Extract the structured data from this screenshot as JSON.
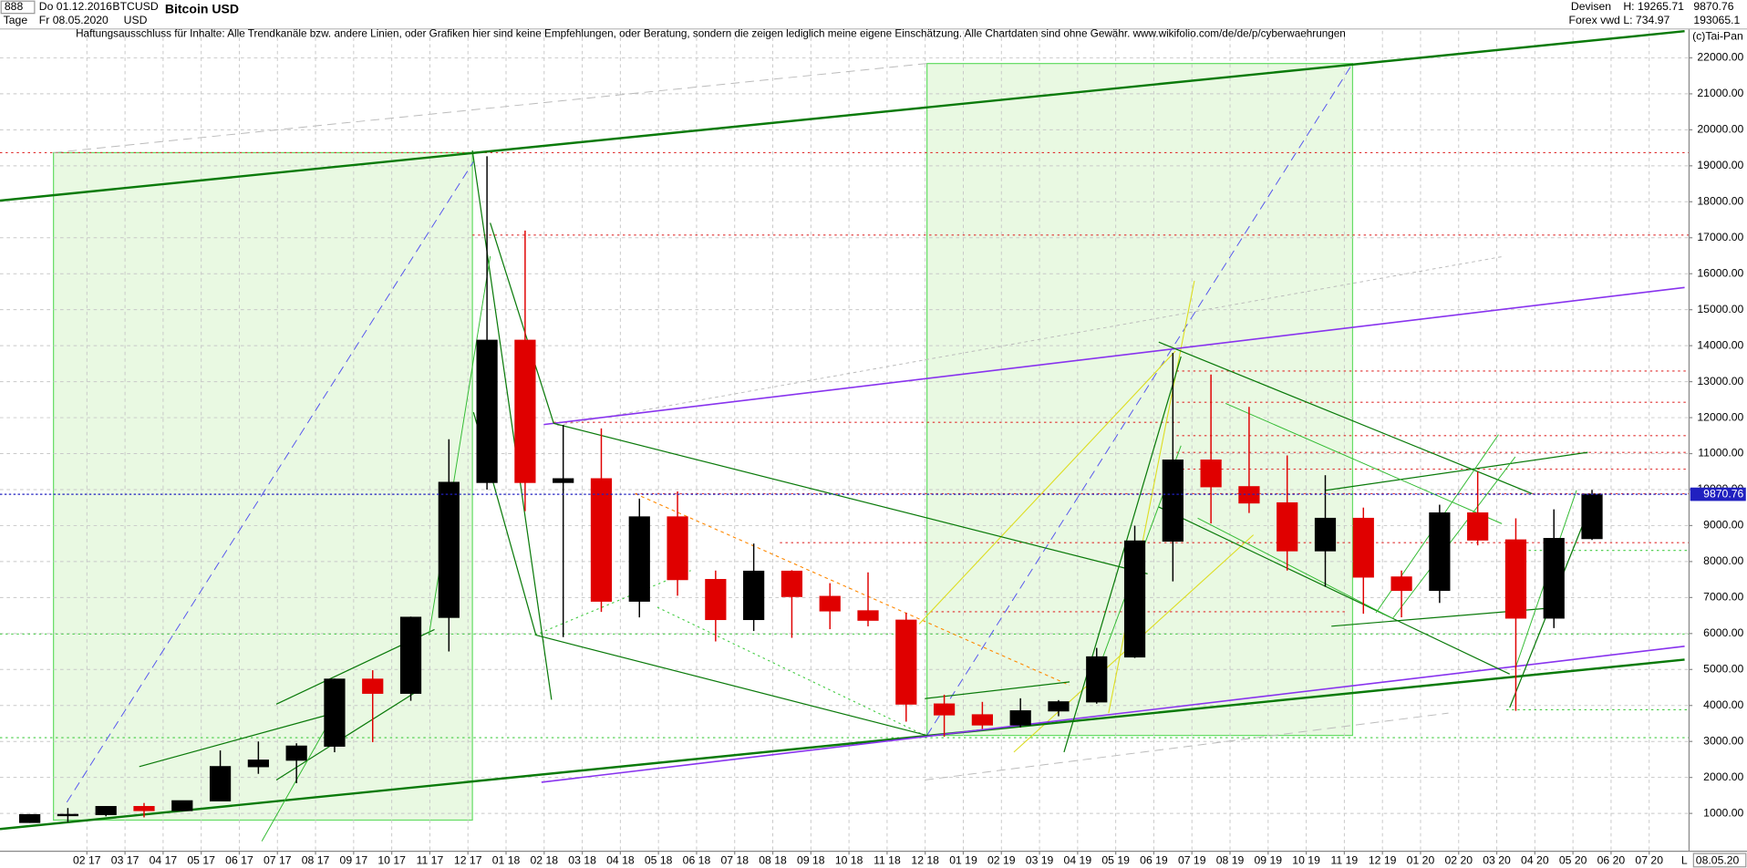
{
  "header": {
    "code": "888",
    "period": "Tage",
    "date_from": "Do 01.12.2016",
    "date_to": "Fr 08.05.2020",
    "symbol": "BTCUSD",
    "currency": "USD",
    "market": "Devisen",
    "source": "Forex vwd",
    "high": "H: 19265.71",
    "low": "L: 734.97",
    "last": "9870.76",
    "volume": "193065.1",
    "disclaimer": "Haftungsausschluss für Inhalte: Alle Trendkanäle bzw. andere Linien, oder Grafiken hier sind keine Empfehlungen, oder Beratung, sondern die zeigen lediglich meine eigene Einschätzung. Alle Chartdaten sind ohne Gewähr.  www.wikifolio.com/de/de/p/cyberwaehrungen",
    "copyright": "(c)Tai-Pan",
    "end_date": "08.05.20",
    "scale_mode": "L"
  },
  "chart_data": {
    "type": "candlestick",
    "title": "Bitcoin USD",
    "x": [
      "2016-12",
      "2017-01",
      "2017-02",
      "2017-03",
      "2017-04",
      "2017-05",
      "2017-06",
      "2017-07",
      "2017-08",
      "2017-09",
      "2017-10",
      "2017-11",
      "2017-12",
      "2018-01",
      "2018-02",
      "2018-03",
      "2018-04",
      "2018-05",
      "2018-06",
      "2018-07",
      "2018-08",
      "2018-09",
      "2018-10",
      "2018-11",
      "2018-12",
      "2019-01",
      "2019-02",
      "2019-03",
      "2019-04",
      "2019-05",
      "2019-06",
      "2019-07",
      "2019-08",
      "2019-09",
      "2019-10",
      "2019-11",
      "2019-12",
      "2020-01",
      "2020-02",
      "2020-03",
      "2020-04",
      "2020-05"
    ],
    "open": [
      750,
      965,
      970,
      1190,
      1080,
      1350,
      2300,
      2480,
      2870,
      4730,
      4340,
      6450,
      10200,
      14150,
      10200,
      10300,
      6900,
      9240,
      7500,
      6390,
      7730,
      7030,
      6630,
      6370,
      4040,
      3740,
      3460,
      3850,
      4100,
      5350,
      8570,
      10820,
      10080,
      9630,
      8300,
      9200,
      7570,
      7200,
      9350,
      8600,
      6430,
      8640
    ],
    "high": [
      980,
      1150,
      1200,
      1290,
      1350,
      2750,
      3000,
      2950,
      4750,
      4980,
      6470,
      11400,
      19265.71,
      17200,
      11800,
      11700,
      9750,
      9950,
      7750,
      8500,
      7760,
      7400,
      7700,
      6580,
      4300,
      4100,
      4200,
      4150,
      5600,
      9000,
      13800,
      13200,
      12300,
      10950,
      10400,
      9500,
      7750,
      9580,
      10500,
      9200,
      9450,
      9990
    ],
    "low": [
      734.97,
      760,
      920,
      890,
      1060,
      1350,
      2100,
      1840,
      2700,
      2980,
      4130,
      5500,
      10000,
      9400,
      5900,
      6600,
      6450,
      7050,
      5780,
      6070,
      5880,
      6120,
      6200,
      3550,
      3130,
      3350,
      3390,
      3700,
      4050,
      5320,
      7450,
      9060,
      9350,
      7750,
      7300,
      6550,
      6450,
      6850,
      8450,
      3850,
      6150,
      8600
    ],
    "close": [
      965,
      970,
      1190,
      1080,
      1350,
      2300,
      2480,
      2870,
      4730,
      4340,
      6450,
      10200,
      14150,
      10200,
      10300,
      6900,
      9240,
      7500,
      6390,
      7730,
      7030,
      6630,
      6370,
      4040,
      3740,
      3460,
      3850,
      4100,
      5350,
      8570,
      10820,
      10080,
      9630,
      8300,
      9200,
      7570,
      7200,
      9350,
      8600,
      6430,
      8640,
      9870.76
    ],
    "up_color": "#000000",
    "down_color": "#e00000",
    "last_price": 9870.76,
    "last_price_color": "#2020c0",
    "xlim": [
      "2016-12",
      "2020-08"
    ],
    "xticks": [
      {
        "value": "2017-02",
        "label": "02 17"
      },
      {
        "value": "2017-03",
        "label": "03 17"
      },
      {
        "value": "2017-04",
        "label": "04 17"
      },
      {
        "value": "2017-05",
        "label": "05 17"
      },
      {
        "value": "2017-06",
        "label": "06 17"
      },
      {
        "value": "2017-07",
        "label": "07 17"
      },
      {
        "value": "2017-08",
        "label": "08 17"
      },
      {
        "value": "2017-09",
        "label": "09 17"
      },
      {
        "value": "2017-10",
        "label": "10 17"
      },
      {
        "value": "2017-11",
        "label": "11 17"
      },
      {
        "value": "2017-12",
        "label": "12 17"
      },
      {
        "value": "2018-01",
        "label": "01 18"
      },
      {
        "value": "2018-02",
        "label": "02 18"
      },
      {
        "value": "2018-03",
        "label": "03 18"
      },
      {
        "value": "2018-04",
        "label": "04 18"
      },
      {
        "value": "2018-05",
        "label": "05 18"
      },
      {
        "value": "2018-06",
        "label": "06 18"
      },
      {
        "value": "2018-07",
        "label": "07 18"
      },
      {
        "value": "2018-08",
        "label": "08 18"
      },
      {
        "value": "2018-09",
        "label": "09 18"
      },
      {
        "value": "2018-10",
        "label": "10 18"
      },
      {
        "value": "2018-11",
        "label": "11 18"
      },
      {
        "value": "2018-12",
        "label": "12 18"
      },
      {
        "value": "2019-01",
        "label": "01 19"
      },
      {
        "value": "2019-02",
        "label": "02 19"
      },
      {
        "value": "2019-03",
        "label": "03 19"
      },
      {
        "value": "2019-04",
        "label": "04 19"
      },
      {
        "value": "2019-05",
        "label": "05 19"
      },
      {
        "value": "2019-06",
        "label": "06 19"
      },
      {
        "value": "2019-07",
        "label": "07 19"
      },
      {
        "value": "2019-08",
        "label": "08 19"
      },
      {
        "value": "2019-09",
        "label": "09 19"
      },
      {
        "value": "2019-10",
        "label": "10 19"
      },
      {
        "value": "2019-11",
        "label": "11 19"
      },
      {
        "value": "2019-12",
        "label": "12 19"
      },
      {
        "value": "2020-01",
        "label": "01 20"
      },
      {
        "value": "2020-02",
        "label": "02 20"
      },
      {
        "value": "2020-03",
        "label": "03 20"
      },
      {
        "value": "2020-04",
        "label": "04 20"
      },
      {
        "value": "2020-05",
        "label": "05 20"
      },
      {
        "value": "2020-06",
        "label": "06 20"
      },
      {
        "value": "2020-07",
        "label": "07 20"
      }
    ],
    "ylim": [
      0,
      22750
    ],
    "yticks": [
      {
        "value": 1000,
        "label": "1000.00"
      },
      {
        "value": 2000,
        "label": "2000.00"
      },
      {
        "value": 3000,
        "label": "3000.00"
      },
      {
        "value": 4000,
        "label": "4000.00"
      },
      {
        "value": 5000,
        "label": "5000.00"
      },
      {
        "value": 6000,
        "label": "6000.00"
      },
      {
        "value": 7000,
        "label": "7000.00"
      },
      {
        "value": 8000,
        "label": "8000.00"
      },
      {
        "value": 9000,
        "label": "9000.00"
      },
      {
        "value": 10000,
        "label": "10000.00"
      },
      {
        "value": 11000,
        "label": "11000.00"
      },
      {
        "value": 12000,
        "label": "12000.00"
      },
      {
        "value": 13000,
        "label": "13000.00"
      },
      {
        "value": 14000,
        "label": "14000.00"
      },
      {
        "value": 15000,
        "label": "15000.00"
      },
      {
        "value": 16000,
        "label": "16000.00"
      },
      {
        "value": 17000,
        "label": "17000.00"
      },
      {
        "value": 18000,
        "label": "18000.00"
      },
      {
        "value": 19000,
        "label": "19000.00"
      },
      {
        "value": 20000,
        "label": "20000.00"
      },
      {
        "value": 21000,
        "label": "21000.00"
      },
      {
        "value": 22000,
        "label": "22000.00"
      }
    ],
    "grid": true
  }
}
